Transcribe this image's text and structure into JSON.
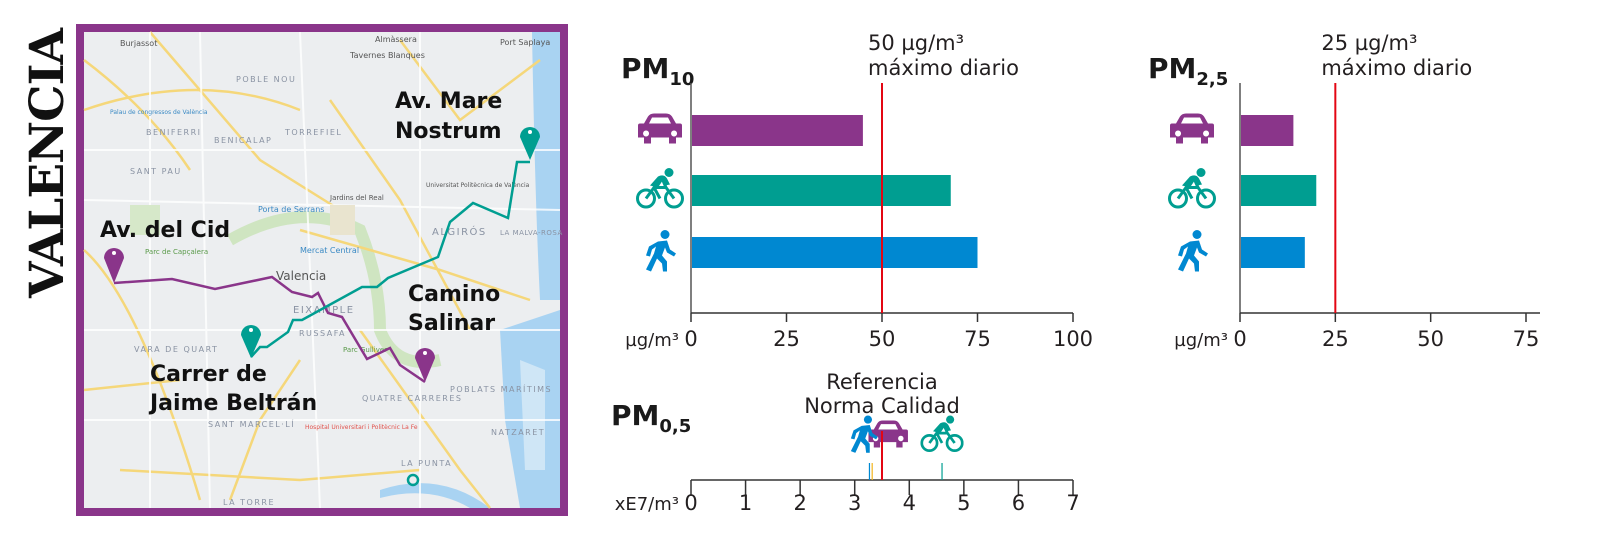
{
  "city_title": "VALENCIA",
  "map": {
    "frame_color": "#8a358a",
    "locations": [
      {
        "name": "Av. del Cid",
        "pin_color": "#8a358a"
      },
      {
        "name_line1": "Av. Mare",
        "name_line2": "Nostrum",
        "pin_color": "#009e91"
      },
      {
        "name_line1": "Carrer de",
        "name_line2": "Jaime Beltrán",
        "pin_color": "#009e91"
      },
      {
        "name_line1": "Camino",
        "name_line2": "Salinar",
        "pin_color": "#8a358a"
      }
    ],
    "districts": [
      "POBLE NOU",
      "BENIFERRI",
      "BENICALAP",
      "TORREFIEL",
      "SANT PAU",
      "ALGIRÓS",
      "LA MALVA-ROSA",
      "EIXAMPLE",
      "RUSSAFA",
      "VARA DE QUART",
      "QUATRE CARRERES",
      "POBLATS MARÍTIMS",
      "SANT MARCEL·LÍ",
      "NATZARET",
      "LA PUNTA",
      "LA TORRE"
    ],
    "places": [
      "Burjassot",
      "Almàssera",
      "Tavernes Blanques",
      "Port Saplaya",
      "Valencia",
      "Universitat Politècnica de València",
      "Jardins del Real"
    ],
    "pois": [
      "Palau de congressos de València",
      "Porta de Serrans",
      "Mercat Central",
      "Parc de Capçalera",
      "Parc Gulliver",
      "Hospital Universitari i Politècnic La Fe"
    ]
  },
  "colors": {
    "car": "#8a358a",
    "bike": "#009e91",
    "walk": "#0088d1",
    "limit": "#e30613"
  },
  "icons": [
    "car-icon",
    "bicycle-icon",
    "pedestrian-icon"
  ],
  "chart_data": [
    {
      "type": "bar",
      "title_main": "PM",
      "title_sub": "10",
      "unit_label": "µg/m³",
      "categories": [
        "car",
        "bike",
        "walk"
      ],
      "values": [
        45,
        68,
        75
      ],
      "xlim": [
        0,
        100
      ],
      "ticks": [
        "0",
        "25",
        "50",
        "75",
        "100"
      ],
      "tick_values": [
        0,
        25,
        50,
        75,
        100
      ],
      "reference": {
        "value": 50,
        "label_line1": "50 µg/m³",
        "label_line2": "máximo diario"
      }
    },
    {
      "type": "bar",
      "title_main": "PM",
      "title_sub": "2,5",
      "unit_label": "µg/m³",
      "categories": [
        "car",
        "bike",
        "walk"
      ],
      "values": [
        14,
        20,
        17
      ],
      "xlim": [
        0,
        75
      ],
      "ticks": [
        "0",
        "25",
        "50",
        "75"
      ],
      "tick_values": [
        0,
        25,
        50,
        75
      ],
      "reference": {
        "value": 25,
        "label_line1": "25 µg/m³",
        "label_line2": "máximo diario"
      }
    },
    {
      "type": "scatter",
      "title_main": "PM",
      "title_sub": "0,5",
      "unit_label": "xE7/m³",
      "categories": [
        "walk",
        "car",
        "bike"
      ],
      "values": [
        3.27,
        3.32,
        4.6
      ],
      "xlim": [
        0,
        7
      ],
      "ticks": [
        "0",
        "1",
        "2",
        "3",
        "4",
        "5",
        "6",
        "7"
      ],
      "tick_values": [
        0,
        1,
        2,
        3,
        4,
        5,
        6,
        7
      ],
      "reference": {
        "value": 3.5,
        "label_line1": "Referencia",
        "label_line2": "Norma Calidad"
      }
    }
  ]
}
